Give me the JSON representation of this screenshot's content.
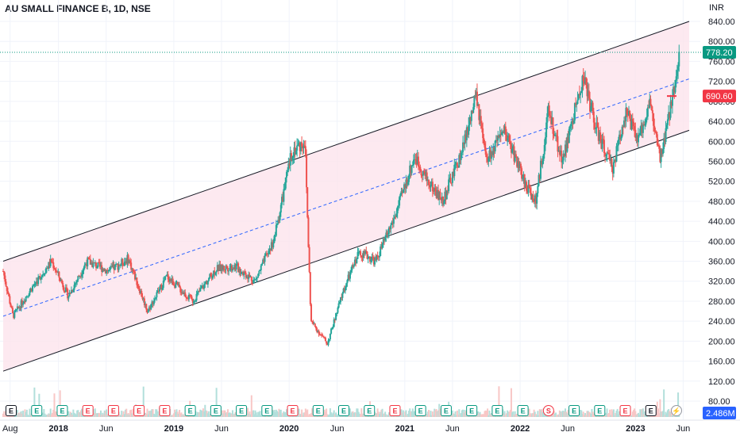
{
  "header": {
    "title": "AU SMALL FINANCE B, 1D, NSE",
    "currency": "INR"
  },
  "colors": {
    "up": "#26a69a",
    "down": "#ef5350",
    "channel_fill": "#fce4ec",
    "channel_line": "#131722",
    "mid_line": "#2962ff",
    "last_price": "#089981",
    "marker_price": "#f23645",
    "volume_badge": "#2962ff"
  },
  "chart_data": {
    "type": "candlestick",
    "title": "AU SMALL FINANCE B, 1D, NSE",
    "ylabel": "INR",
    "ylim": [
      60,
      850
    ],
    "y_ticks": [
      80,
      120,
      160,
      200,
      240,
      280,
      320,
      360,
      400,
      440,
      480,
      520,
      560,
      600,
      640,
      680,
      720,
      760,
      800,
      840
    ],
    "x_range": [
      "2017-07-10",
      "2023-06-20"
    ],
    "x_ticks": [
      {
        "label": "Aug",
        "date": "2017-08-01",
        "bold": false
      },
      {
        "label": "2018",
        "date": "2018-01-01",
        "bold": true
      },
      {
        "label": "Jun",
        "date": "2018-06-01",
        "bold": false
      },
      {
        "label": "2019",
        "date": "2019-01-01",
        "bold": true
      },
      {
        "label": "Jun",
        "date": "2019-06-01",
        "bold": false
      },
      {
        "label": "2020",
        "date": "2020-01-01",
        "bold": true
      },
      {
        "label": "Jun",
        "date": "2020-06-01",
        "bold": false
      },
      {
        "label": "2021",
        "date": "2021-01-01",
        "bold": true
      },
      {
        "label": "Jun",
        "date": "2021-06-01",
        "bold": false
      },
      {
        "label": "2022",
        "date": "2022-01-01",
        "bold": true
      },
      {
        "label": "Jun",
        "date": "2022-06-01",
        "bold": false
      },
      {
        "label": "2023",
        "date": "2023-01-01",
        "bold": true
      },
      {
        "label": "Jun",
        "date": "2023-06-01",
        "bold": false
      }
    ],
    "price_path": [
      [
        "2017-07-10",
        340
      ],
      [
        "2017-08-10",
        250
      ],
      [
        "2017-10-01",
        300
      ],
      [
        "2017-12-10",
        360
      ],
      [
        "2018-02-01",
        290
      ],
      [
        "2018-04-01",
        360
      ],
      [
        "2018-06-10",
        340
      ],
      [
        "2018-08-10",
        365
      ],
      [
        "2018-10-10",
        260
      ],
      [
        "2018-12-10",
        330
      ],
      [
        "2019-03-01",
        280
      ],
      [
        "2019-05-15",
        345
      ],
      [
        "2019-07-15",
        350
      ],
      [
        "2019-09-15",
        320
      ],
      [
        "2019-11-15",
        405
      ],
      [
        "2020-01-10",
        580
      ],
      [
        "2020-02-20",
        600
      ],
      [
        "2020-03-10",
        240
      ],
      [
        "2020-05-01",
        195
      ],
      [
        "2020-06-20",
        300
      ],
      [
        "2020-08-10",
        380
      ],
      [
        "2020-10-01",
        360
      ],
      [
        "2020-12-01",
        450
      ],
      [
        "2021-02-01",
        570
      ],
      [
        "2021-03-15",
        520
      ],
      [
        "2021-05-01",
        480
      ],
      [
        "2021-07-01",
        580
      ],
      [
        "2021-08-15",
        690
      ],
      [
        "2021-09-15",
        560
      ],
      [
        "2021-11-15",
        620
      ],
      [
        "2022-01-20",
        510
      ],
      [
        "2022-02-20",
        480
      ],
      [
        "2022-04-01",
        660
      ],
      [
        "2022-05-15",
        560
      ],
      [
        "2022-07-20",
        730
      ],
      [
        "2022-09-01",
        620
      ],
      [
        "2022-10-20",
        545
      ],
      [
        "2022-12-01",
        660
      ],
      [
        "2023-01-10",
        600
      ],
      [
        "2023-02-15",
        680
      ],
      [
        "2023-03-20",
        560
      ],
      [
        "2023-04-20",
        660
      ],
      [
        "2023-05-20",
        778
      ]
    ],
    "channel": {
      "upper": [
        [
          "2017-07-10",
          360
        ],
        [
          "2023-06-20",
          840
        ]
      ],
      "middle": [
        [
          "2017-07-10",
          250
        ],
        [
          "2023-06-20",
          725
        ]
      ],
      "lower": [
        [
          "2017-07-10",
          140
        ],
        [
          "2023-06-20",
          622
        ]
      ]
    },
    "last_price": {
      "value": 778.2,
      "label": "778.20"
    },
    "marker_price": {
      "value": 690.6,
      "label": "690.60"
    },
    "volume_label": "2.486M"
  },
  "events": [
    {
      "letter": "E",
      "kind": "earnings-plain"
    },
    {
      "letter": "E",
      "kind": "earnings-beat"
    },
    {
      "letter": "E",
      "kind": "earnings-beat"
    },
    {
      "letter": "E",
      "kind": "earnings-miss"
    },
    {
      "letter": "E",
      "kind": "earnings-miss"
    },
    {
      "letter": "E",
      "kind": "earnings-miss"
    },
    {
      "letter": "E",
      "kind": "earnings-miss"
    },
    {
      "letter": "E",
      "kind": "earnings-beat"
    },
    {
      "letter": "E",
      "kind": "earnings-beat"
    },
    {
      "letter": "E",
      "kind": "earnings-beat"
    },
    {
      "letter": "E",
      "kind": "earnings-beat"
    },
    {
      "letter": "E",
      "kind": "earnings-miss"
    },
    {
      "letter": "E",
      "kind": "earnings-beat"
    },
    {
      "letter": "E",
      "kind": "earnings-beat"
    },
    {
      "letter": "E",
      "kind": "earnings-beat"
    },
    {
      "letter": "E",
      "kind": "earnings-miss"
    },
    {
      "letter": "E",
      "kind": "earnings-beat"
    },
    {
      "letter": "E",
      "kind": "earnings-beat"
    },
    {
      "letter": "E",
      "kind": "earnings-beat"
    },
    {
      "letter": "E",
      "kind": "earnings-beat"
    },
    {
      "letter": "E",
      "kind": "earnings-beat"
    },
    {
      "letter": "S",
      "kind": "split"
    },
    {
      "letter": "E",
      "kind": "earnings-beat"
    },
    {
      "letter": "E",
      "kind": "earnings-beat"
    },
    {
      "letter": "E",
      "kind": "earnings-miss"
    },
    {
      "letter": "E",
      "kind": "earnings-plain"
    },
    {
      "letter": "⚡",
      "kind": "news"
    }
  ]
}
